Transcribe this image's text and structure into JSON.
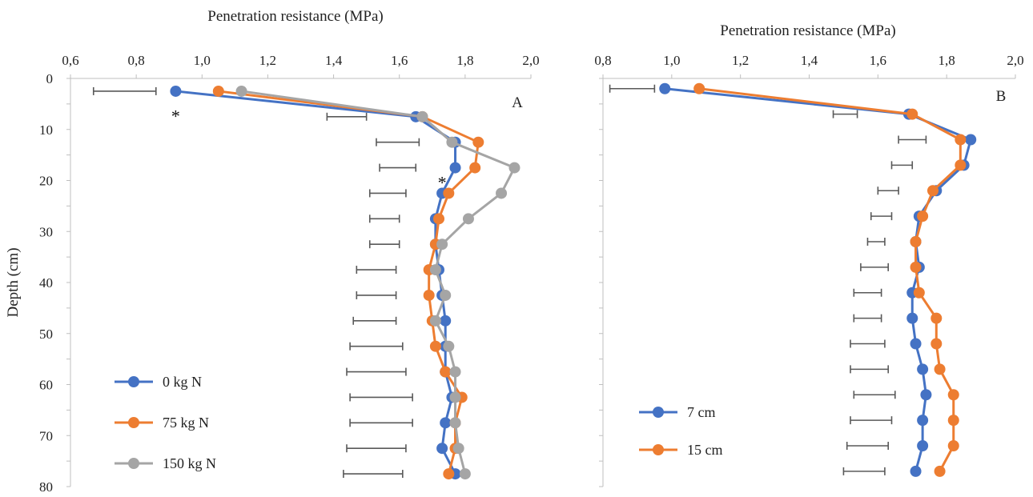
{
  "chart_data": [
    {
      "type": "line",
      "panel": "A",
      "xlabel": "Penetration resistance (MPa)",
      "ylabel": "Depth (cm)",
      "xlim": [
        0.6,
        2.0
      ],
      "ylim": [
        0,
        80
      ],
      "y_inverted": true,
      "xticks": [
        "0,6",
        "0,8",
        "1,0",
        "1,2",
        "1,4",
        "1,6",
        "1,8",
        "2,0"
      ],
      "yticks": [
        "0",
        "10",
        "20",
        "30",
        "40",
        "50",
        "60",
        "70",
        "80"
      ],
      "x_axis_position": "top",
      "legend_position": "bottom-left",
      "depths": [
        2.5,
        7.5,
        12.5,
        17.5,
        22.5,
        27.5,
        32.5,
        37.5,
        42.5,
        47.5,
        52.5,
        57.5,
        62.5,
        67.5,
        72.5,
        77.5
      ],
      "series": [
        {
          "name": "0 kg N",
          "color": "#4472C4",
          "values": [
            0.92,
            1.65,
            1.77,
            1.77,
            1.73,
            1.71,
            1.71,
            1.72,
            1.73,
            1.74,
            1.74,
            1.74,
            1.76,
            1.74,
            1.73,
            1.77
          ]
        },
        {
          "name": "75 kg N",
          "color": "#ED7D31",
          "values": [
            1.05,
            1.67,
            1.84,
            1.83,
            1.75,
            1.72,
            1.71,
            1.69,
            1.69,
            1.7,
            1.71,
            1.74,
            1.79,
            1.77,
            1.77,
            1.75
          ]
        },
        {
          "name": "150 kg N",
          "color": "#A5A5A5",
          "values": [
            1.12,
            1.67,
            1.76,
            1.95,
            1.91,
            1.81,
            1.73,
            1.71,
            1.74,
            1.71,
            1.75,
            1.77,
            1.77,
            1.77,
            1.78,
            1.8
          ]
        }
      ],
      "error_bars": [
        {
          "depth": 2.5,
          "from": 0.67,
          "to": 0.86
        },
        {
          "depth": 7.5,
          "from": 1.38,
          "to": 1.5
        },
        {
          "depth": 12.5,
          "from": 1.53,
          "to": 1.66
        },
        {
          "depth": 17.5,
          "from": 1.54,
          "to": 1.65
        },
        {
          "depth": 22.5,
          "from": 1.51,
          "to": 1.62
        },
        {
          "depth": 27.5,
          "from": 1.51,
          "to": 1.6
        },
        {
          "depth": 32.5,
          "from": 1.51,
          "to": 1.6
        },
        {
          "depth": 37.5,
          "from": 1.47,
          "to": 1.59
        },
        {
          "depth": 42.5,
          "from": 1.47,
          "to": 1.59
        },
        {
          "depth": 47.5,
          "from": 1.46,
          "to": 1.59
        },
        {
          "depth": 52.5,
          "from": 1.45,
          "to": 1.61
        },
        {
          "depth": 57.5,
          "from": 1.44,
          "to": 1.62
        },
        {
          "depth": 62.5,
          "from": 1.45,
          "to": 1.64
        },
        {
          "depth": 67.5,
          "from": 1.45,
          "to": 1.64
        },
        {
          "depth": 72.5,
          "from": 1.44,
          "to": 1.62
        },
        {
          "depth": 77.5,
          "from": 1.43,
          "to": 1.61
        }
      ],
      "annotations": [
        {
          "text": "*",
          "x": 0.92,
          "depth": 7
        },
        {
          "text": "*",
          "x": 1.73,
          "depth": 20
        }
      ]
    },
    {
      "type": "line",
      "panel": "B",
      "xlabel": "Penetration resistance (MPa)",
      "ylabel": "",
      "xlim": [
        0.8,
        2.0
      ],
      "ylim": [
        0,
        80
      ],
      "y_inverted": true,
      "xticks": [
        "0,8",
        "1,0",
        "1,2",
        "1,4",
        "1,6",
        "1,8",
        "2,0"
      ],
      "x_axis_position": "top",
      "legend_position": "bottom-left",
      "depths": [
        2,
        7,
        12,
        17,
        22,
        27,
        32,
        37,
        42,
        47,
        52,
        57,
        62,
        67,
        72,
        77
      ],
      "series": [
        {
          "name": "7 cm",
          "color": "#4472C4",
          "values": [
            0.98,
            1.69,
            1.87,
            1.85,
            1.77,
            1.72,
            1.71,
            1.72,
            1.7,
            1.7,
            1.71,
            1.73,
            1.74,
            1.73,
            1.73,
            1.71
          ]
        },
        {
          "name": "15 cm",
          "color": "#ED7D31",
          "values": [
            1.08,
            1.7,
            1.84,
            1.84,
            1.76,
            1.73,
            1.71,
            1.71,
            1.72,
            1.77,
            1.77,
            1.78,
            1.82,
            1.82,
            1.82,
            1.78
          ]
        }
      ],
      "error_bars": [
        {
          "depth": 2,
          "from": 0.82,
          "to": 0.95
        },
        {
          "depth": 7,
          "from": 1.47,
          "to": 1.54
        },
        {
          "depth": 12,
          "from": 1.66,
          "to": 1.74
        },
        {
          "depth": 17,
          "from": 1.64,
          "to": 1.7
        },
        {
          "depth": 22,
          "from": 1.6,
          "to": 1.66
        },
        {
          "depth": 27,
          "from": 1.58,
          "to": 1.64
        },
        {
          "depth": 32,
          "from": 1.57,
          "to": 1.62
        },
        {
          "depth": 37,
          "from": 1.55,
          "to": 1.63
        },
        {
          "depth": 42,
          "from": 1.53,
          "to": 1.61
        },
        {
          "depth": 47,
          "from": 1.53,
          "to": 1.61
        },
        {
          "depth": 52,
          "from": 1.52,
          "to": 1.62
        },
        {
          "depth": 57,
          "from": 1.52,
          "to": 1.63
        },
        {
          "depth": 62,
          "from": 1.53,
          "to": 1.65
        },
        {
          "depth": 67,
          "from": 1.52,
          "to": 1.64
        },
        {
          "depth": 72,
          "from": 1.51,
          "to": 1.63
        },
        {
          "depth": 77,
          "from": 1.5,
          "to": 1.62
        }
      ],
      "annotations": []
    }
  ]
}
